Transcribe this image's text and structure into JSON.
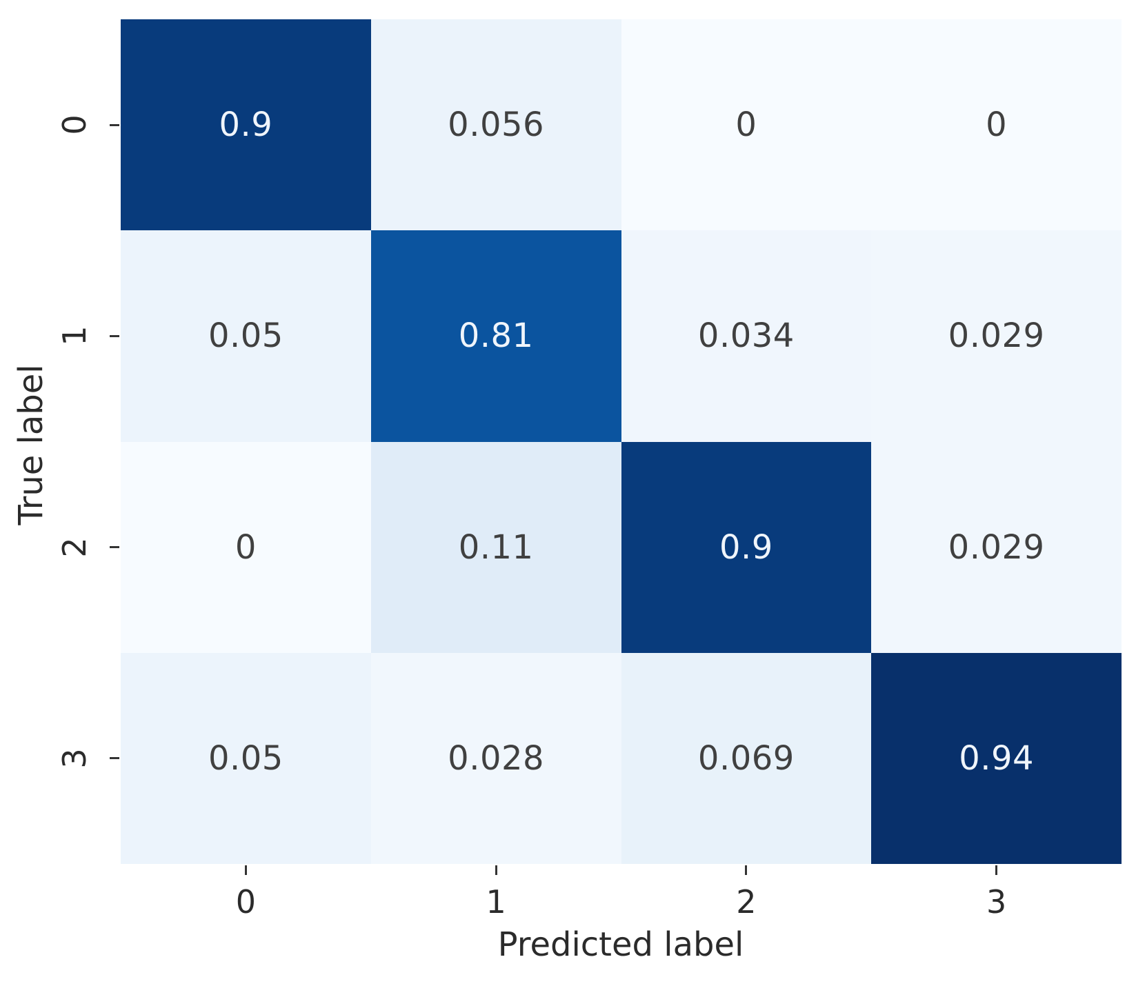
{
  "figure": {
    "background": "#ffffff"
  },
  "chart_data": {
    "type": "heatmap",
    "title": "",
    "xlabel": "Predicted label",
    "ylabel": "True label",
    "x_tick_labels": [
      "0",
      "1",
      "2",
      "3"
    ],
    "y_tick_labels": [
      "0",
      "1",
      "2",
      "3"
    ],
    "matrix": [
      [
        0.9,
        0.056,
        0,
        0
      ],
      [
        0.05,
        0.81,
        0.034,
        0.029
      ],
      [
        0,
        0.11,
        0.9,
        0.029
      ],
      [
        0.05,
        0.028,
        0.069,
        0.94
      ]
    ],
    "cell_text": [
      [
        "0.9",
        "0.056",
        "0",
        "0"
      ],
      [
        "0.05",
        "0.81",
        "0.034",
        "0.029"
      ],
      [
        "0",
        "0.11",
        "0.9",
        "0.029"
      ],
      [
        "0.05",
        "0.028",
        "0.069",
        "0.94"
      ]
    ],
    "colormap": "Blues",
    "vmin": 0,
    "vmax": 0.94,
    "text_threshold": 0.47,
    "legend": "none",
    "grid": false,
    "colors": {
      "dark_cell_text": "#f0f5fb",
      "light_cell_text": "#404040",
      "tick_text": "#2b2b2b",
      "tick_mark": "#333333",
      "colormap_anchors": [
        "#f7fbff",
        "#deebf7",
        "#c6dbef",
        "#9ecae1",
        "#6baed6",
        "#4292c6",
        "#2171b5",
        "#08519c",
        "#08306b"
      ]
    }
  }
}
